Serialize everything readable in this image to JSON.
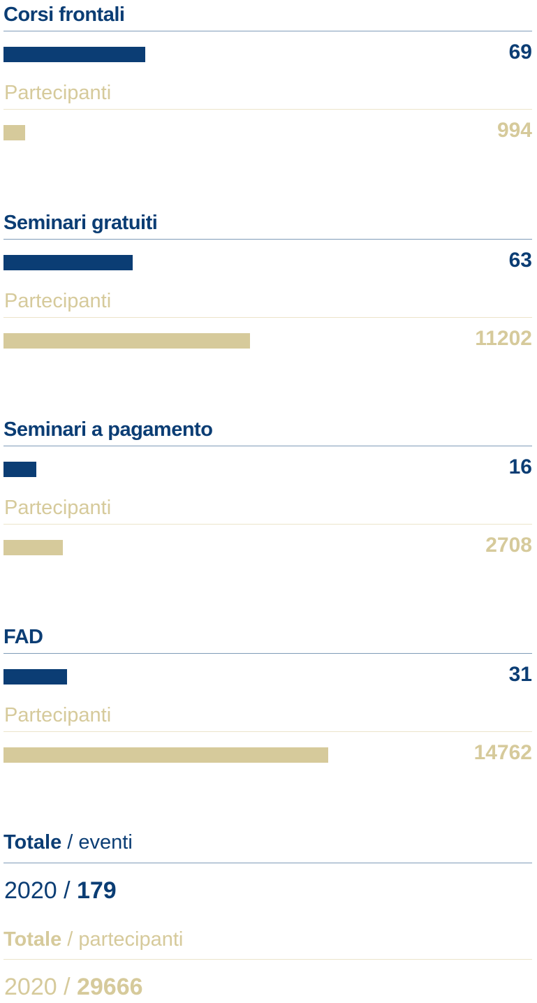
{
  "colors": {
    "events": "#0b3d74",
    "participants": "#d6ca9b"
  },
  "chart_data": {
    "type": "bar",
    "orientation": "horizontal",
    "categories": [
      "Corsi frontali",
      "Seminari gratuiti",
      "Seminari a pagamento",
      "FAD"
    ],
    "series": [
      {
        "values": [
          69,
          63,
          16,
          31
        ]
      },
      {
        "name": "Partecipanti",
        "values": [
          994,
          11202,
          2708,
          14762
        ]
      }
    ]
  },
  "sections": [
    {
      "title": "Corsi frontali",
      "events": "69",
      "participants_label": "Partecipanti",
      "participants": "994"
    },
    {
      "title": "Seminari gratuiti",
      "events": "63",
      "participants_label": "Partecipanti",
      "participants": "11202"
    },
    {
      "title": "Seminari a pagamento",
      "events": "16",
      "participants_label": "Partecipanti",
      "participants": "2708"
    },
    {
      "title": "FAD",
      "events": "31",
      "participants_label": "Partecipanti",
      "participants": "14762"
    }
  ],
  "totals": {
    "events": {
      "label_bold": "Totale",
      "label_rest": " / eventi",
      "year": "2020",
      "separator": " / ",
      "value": "179"
    },
    "participants": {
      "label_bold": "Totale",
      "label_rest": " / partecipanti",
      "year": "2020",
      "separator": " / ",
      "value": "29666"
    }
  }
}
